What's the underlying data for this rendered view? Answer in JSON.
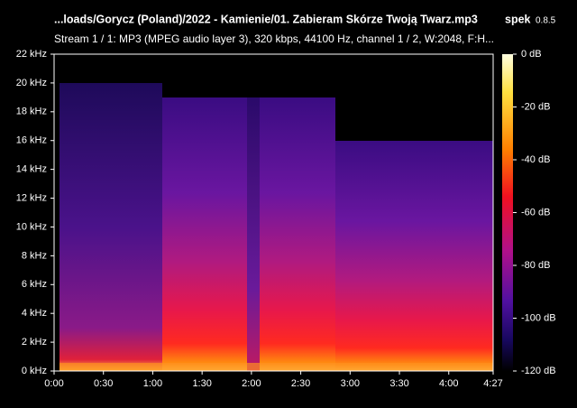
{
  "chart_data": {
    "type": "spectrogram",
    "title": "...loads/Gorycz (Poland)/2022 - Kamienie/01. Zabieram Skórze Twoją Twarz.mp3",
    "app_name": "spek",
    "app_version": "0.8.5",
    "subtitle": "Stream 1 / 1: MP3 (MPEG audio layer 3), 320 kbps, 44100 Hz, channel 1 / 2, W:2048, F:H...",
    "xlim": [
      0,
      267
    ],
    "xticks": [
      {
        "value": 0,
        "label": "0:00"
      },
      {
        "value": 30,
        "label": "0:30"
      },
      {
        "value": 60,
        "label": "1:00"
      },
      {
        "value": 90,
        "label": "1:30"
      },
      {
        "value": 120,
        "label": "2:00"
      },
      {
        "value": 150,
        "label": "2:30"
      },
      {
        "value": 180,
        "label": "3:00"
      },
      {
        "value": 210,
        "label": "3:30"
      },
      {
        "value": 240,
        "label": "4:00"
      },
      {
        "value": 267,
        "label": "4:27"
      }
    ],
    "ylim": [
      0,
      22
    ],
    "yticks": [
      {
        "value": 0,
        "label": "0 kHz"
      },
      {
        "value": 2,
        "label": "2 kHz"
      },
      {
        "value": 4,
        "label": "4 kHz"
      },
      {
        "value": 6,
        "label": "6 kHz"
      },
      {
        "value": 8,
        "label": "8 kHz"
      },
      {
        "value": 10,
        "label": "10 kHz"
      },
      {
        "value": 12,
        "label": "12 kHz"
      },
      {
        "value": 14,
        "label": "14 kHz"
      },
      {
        "value": 16,
        "label": "16 kHz"
      },
      {
        "value": 18,
        "label": "18 kHz"
      },
      {
        "value": 20,
        "label": "20 kHz"
      },
      {
        "value": 22,
        "label": "22 kHz"
      }
    ],
    "clim": [
      -120,
      0
    ],
    "cticks": [
      {
        "value": 0,
        "label": "0 dB"
      },
      {
        "value": -20,
        "label": "-20 dB"
      },
      {
        "value": -40,
        "label": "-40 dB"
      },
      {
        "value": -60,
        "label": "-60 dB"
      },
      {
        "value": -80,
        "label": "-80 dB"
      },
      {
        "value": -100,
        "label": "-100 dB"
      },
      {
        "value": -120,
        "label": "-120 dB"
      }
    ]
  }
}
